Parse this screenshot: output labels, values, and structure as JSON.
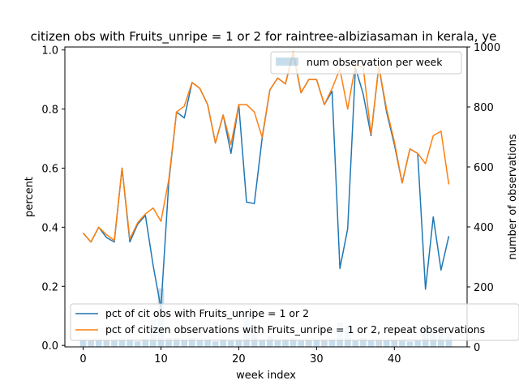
{
  "chart_data": {
    "type": "line",
    "title": "citizen obs with Fruits_unripe = 1 or 2 for raintree-albiziasaman in kerala, ye",
    "xlabel": "week index",
    "ylabel": "percent",
    "y2label": "number of observations",
    "xlim": [
      -2.35,
      49.35
    ],
    "ylim": [
      -0.005,
      1.01
    ],
    "y2lim": [
      0,
      1000
    ],
    "xticks": [
      "0",
      "10",
      "20",
      "30",
      "40"
    ],
    "xtick_values": [
      0,
      10,
      20,
      30,
      40
    ],
    "yticks": [
      "0.0",
      "0.2",
      "0.4",
      "0.6",
      "0.8",
      "1.0"
    ],
    "ytick_values": [
      0,
      0.2,
      0.4,
      0.6,
      0.8,
      1.0
    ],
    "y2ticks": [
      "0",
      "200",
      "400",
      "600",
      "800",
      "1000"
    ],
    "y2tick_values": [
      0,
      200,
      400,
      600,
      800,
      1000
    ],
    "x": [
      0,
      1,
      2,
      3,
      4,
      5,
      6,
      7,
      8,
      9,
      10,
      11,
      12,
      13,
      14,
      15,
      16,
      17,
      18,
      19,
      20,
      21,
      22,
      23,
      24,
      25,
      26,
      27,
      28,
      29,
      30,
      31,
      32,
      33,
      34,
      35,
      36,
      37,
      38,
      39,
      40,
      41,
      42,
      43,
      44,
      45,
      46,
      47
    ],
    "series": [
      {
        "name": "pct of cit obs with Fruits_unripe = 1 or 2",
        "color": "#1f77b4",
        "values": [
          0.38,
          0.35,
          0.4,
          0.365,
          0.35,
          0.6,
          0.35,
          0.41,
          0.44,
          0.27,
          0.125,
          0.55,
          0.79,
          0.77,
          0.89,
          0.87,
          0.815,
          0.685,
          0.78,
          0.65,
          0.815,
          0.485,
          0.48,
          0.7,
          0.865,
          0.905,
          0.885,
          0.99,
          0.855,
          0.9,
          0.9,
          0.815,
          0.86,
          0.26,
          0.395,
          0.94,
          0.85,
          0.71,
          0.945,
          0.79,
          0.68,
          0.55,
          0.665,
          0.65,
          0.19,
          0.435,
          0.255,
          0.37
        ]
      },
      {
        "name": "pct of citizen observations with Fruits_unripe = 1 or 2, repeat observations",
        "color": "#ff7f0e",
        "values": [
          0.38,
          0.35,
          0.4,
          0.375,
          0.355,
          0.6,
          0.36,
          0.415,
          0.445,
          0.465,
          0.42,
          0.56,
          0.79,
          0.81,
          0.89,
          0.87,
          0.815,
          0.685,
          0.78,
          0.68,
          0.815,
          0.815,
          0.79,
          0.705,
          0.865,
          0.905,
          0.885,
          0.995,
          0.855,
          0.9,
          0.9,
          0.815,
          0.87,
          0.935,
          0.8,
          0.95,
          0.94,
          0.715,
          0.945,
          0.8,
          0.69,
          0.55,
          0.665,
          0.65,
          0.615,
          0.71,
          0.725,
          0.545
        ]
      },
      {
        "name": "num observation per week",
        "type": "bar",
        "axis": "y2",
        "color": "#1f77b4",
        "opacity": 0.25,
        "values": [
          22,
          22,
          25,
          22,
          20,
          22,
          25,
          18,
          28,
          90,
          195,
          30,
          30,
          25,
          30,
          25,
          25,
          18,
          25,
          20,
          25,
          115,
          55,
          25,
          35,
          20,
          25,
          30,
          20,
          25,
          25,
          20,
          25,
          80,
          70,
          20,
          30,
          22,
          25,
          22,
          22,
          20,
          18,
          20,
          70,
          55,
          70,
          50
        ]
      }
    ],
    "legend_top": {
      "placement": "top-right",
      "entries": [
        "num observation per week"
      ]
    },
    "legend_bottom": {
      "placement": "lower-center",
      "entries": [
        "pct of cit obs with Fruits_unripe = 1 or 2",
        "pct of citizen observations with Fruits_unripe = 1 or 2, repeat observations"
      ]
    },
    "grid": false
  }
}
